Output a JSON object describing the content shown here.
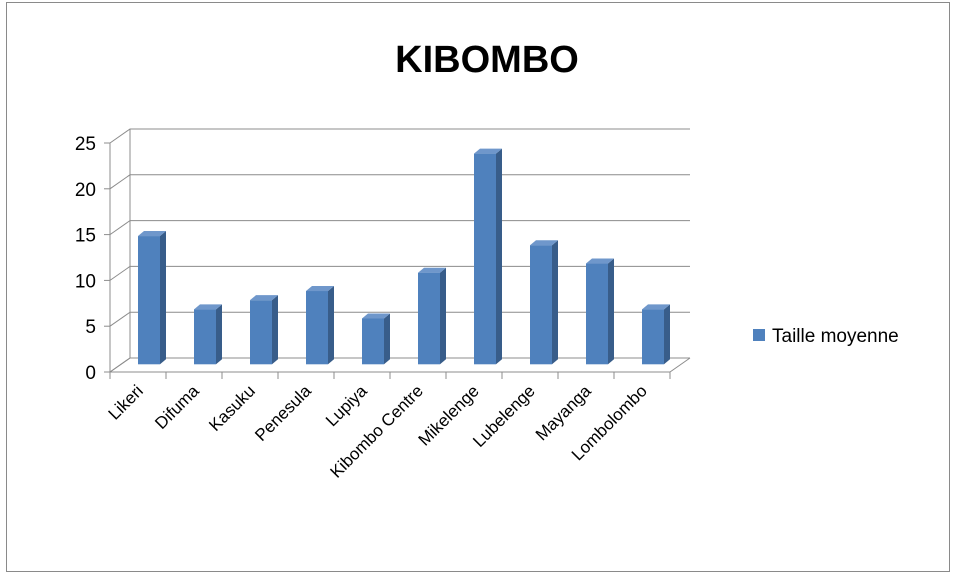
{
  "chart_data": {
    "type": "bar",
    "title": "KIBOMBO",
    "categories": [
      "Likeri",
      "Difuma",
      "Kasuku",
      "Penesula",
      "Lupiya",
      "Kibombo Centre",
      "Mikelenge",
      "Lubelenge",
      "Mayanga",
      "Lombolombo"
    ],
    "series": [
      {
        "name": "Taille moyenne",
        "values": [
          14,
          6,
          7,
          8,
          5,
          10,
          23,
          13,
          11,
          6
        ]
      }
    ],
    "ylim": [
      0,
      25
    ],
    "yticks": [
      0,
      5,
      10,
      15,
      20,
      25
    ],
    "grid": true,
    "legend": "right",
    "colors": {
      "bar_front": "#4f81bd",
      "bar_side": "#385d8a",
      "bar_top": "#6f97cb",
      "grid": "#8c8c8c"
    }
  }
}
